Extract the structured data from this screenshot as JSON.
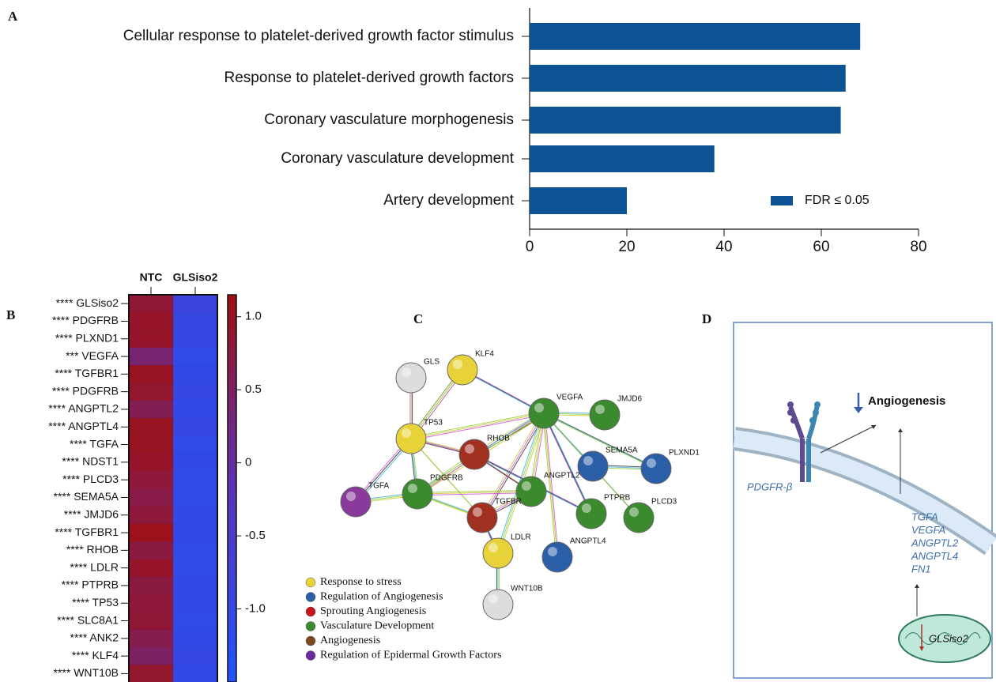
{
  "chart_data": [
    {
      "type": "barh",
      "label": "A",
      "categories": [
        "Cellular response to platelet-derived growth factor stimulus",
        "Response to platelet-derived growth factors",
        "Coronary vasculature morphogenesis",
        "Coronary vasculature development",
        "Artery development"
      ],
      "values": [
        68,
        65,
        64,
        38,
        20
      ],
      "color": "#0b5394",
      "xlim": [
        0,
        80
      ],
      "xticks": [
        0,
        20,
        40,
        60,
        80
      ],
      "legend": "FDR ≤ 0.05"
    },
    {
      "type": "heatmap",
      "label": "B",
      "columns": [
        "NTC",
        "GLSiso2"
      ],
      "rows": [
        "**** GLSiso2",
        "**** PDGFRB",
        "**** PLXND1",
        "*** VEGFA",
        "**** TGFBR1",
        "**** PDGFRB",
        "**** ANGPTL2",
        "**** ANGPTL4",
        "**** TGFA",
        "**** NDST1",
        "**** PLCD3",
        "**** SEMA5A",
        "**** JMJD6",
        "**** TGFBR1",
        "**** RHOB",
        "**** LDLR",
        "**** PTPRB",
        "**** TP53",
        "**** SLC8A1",
        "**** ANK2",
        "**** KLF4",
        "**** WNT10B"
      ],
      "values": [
        [
          0.85,
          -0.85
        ],
        [
          0.95,
          -0.95
        ],
        [
          0.95,
          -1.0
        ],
        [
          0.4,
          -1.1
        ],
        [
          1.0,
          -1.05
        ],
        [
          0.9,
          -1.0
        ],
        [
          0.6,
          -1.05
        ],
        [
          1.0,
          -1.0
        ],
        [
          1.0,
          -1.1
        ],
        [
          0.95,
          -1.05
        ],
        [
          0.8,
          -1.1
        ],
        [
          0.7,
          -1.1
        ],
        [
          0.8,
          -1.05
        ],
        [
          1.05,
          -1.05
        ],
        [
          0.75,
          -1.1
        ],
        [
          0.95,
          -1.1
        ],
        [
          0.75,
          -1.05
        ],
        [
          0.8,
          -1.05
        ],
        [
          0.85,
          -1.1
        ],
        [
          0.65,
          -1.05
        ],
        [
          0.5,
          -1.0
        ],
        [
          0.9,
          -1.05
        ]
      ],
      "clim": [
        -1.5,
        1.15
      ],
      "colors": [
        "#1e55ff",
        "#5a33b8",
        "#a00f0f"
      ],
      "cticks": [
        {
          "value": 1,
          "label": "1.0"
        },
        0.5,
        0,
        -0.5,
        {
          "value": -1,
          "label": "-1.0"
        }
      ]
    }
  ],
  "network": {
    "label": "C",
    "nodes": [
      "GLS",
      "KLF4",
      "VEGFA",
      "JMJD6",
      "TP53",
      "RHOB",
      "SEMA5A",
      "PLXND1",
      "TGFA",
      "PDGFRB",
      "ANGPTL2",
      "TGFBR",
      "PTPRB",
      "PLCD3",
      "LDLR",
      "ANGPTL4",
      "WNT10B"
    ],
    "legend": [
      {
        "name": "Response to stress",
        "color": "#e8d23a"
      },
      {
        "name": "Regulation of Angiogenesis",
        "color": "#2a5fa8"
      },
      {
        "name": "Sprouting Angiogenesis",
        "color": "#c8141c"
      },
      {
        "name": "Vasculature Development",
        "color": "#3c8a2e"
      },
      {
        "name": "Angiogenesis",
        "color": "#7a4a1c"
      },
      {
        "name": "Regulation of Epidermal Growth Factors",
        "color": "#6a2aa0"
      }
    ]
  },
  "diagram": {
    "label": "D",
    "outcome": "Angiogenesis",
    "receptor": "PDGFR-β",
    "genes": [
      "TGFA",
      "VEGFA",
      "ANGPTL2",
      "ANGPTL4",
      "FN1"
    ],
    "organelle": "GLSiso2"
  }
}
